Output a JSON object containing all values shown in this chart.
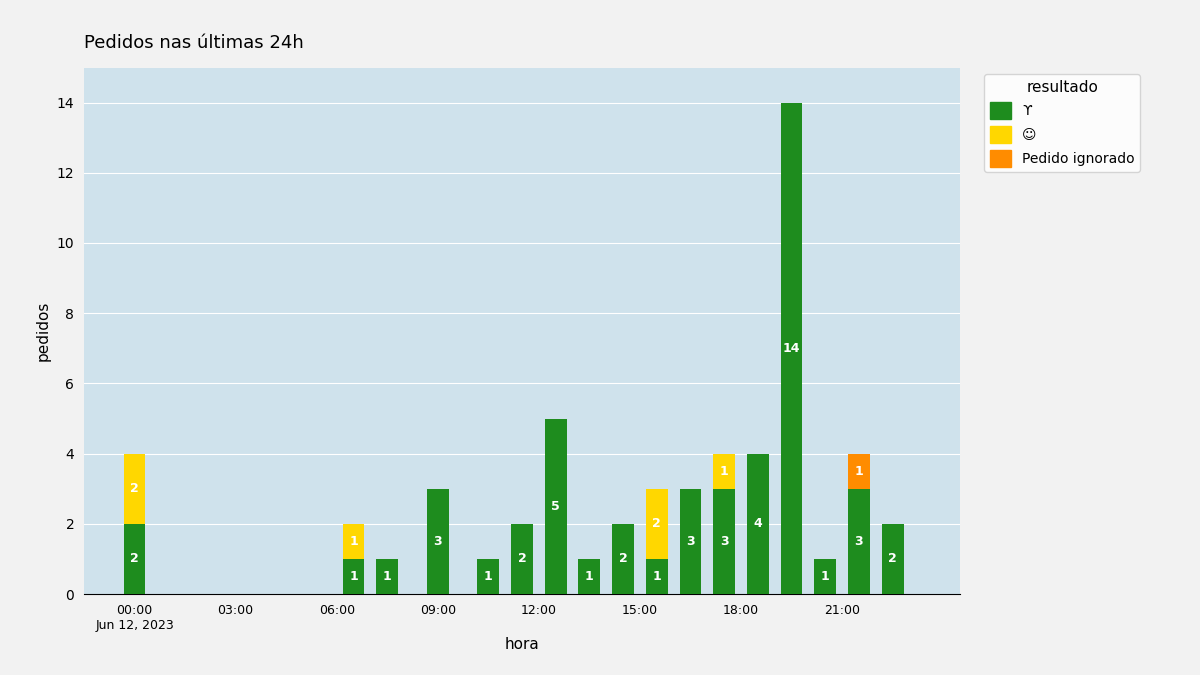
{
  "title": "Pedidos nas últimas 24h",
  "xlabel": "hora",
  "ylabel": "pedidos",
  "background_color": "#f2f2f2",
  "plot_bg_color": "#cfe2ec",
  "legend_title": "resultado",
  "legend_labels": [
    "ϒ",
    "☺",
    "Pedido ignorado"
  ],
  "legend_colors": [
    "#1e8c1e",
    "#ffd700",
    "#ff8c00"
  ],
  "colors": {
    "green": "#1e8c1e",
    "yellow": "#ffd700",
    "orange": "#ff8c00"
  },
  "hour_labels": [
    "00:00\nJun 12, 2023",
    "03:00",
    "06:00",
    "09:00",
    "12:00",
    "15:00",
    "18:00",
    "21:00"
  ],
  "hour_positions": [
    0,
    3,
    6,
    9,
    12,
    15,
    18,
    21
  ],
  "bars": [
    {
      "hour": 0,
      "green": 2,
      "yellow": 2,
      "orange": 0
    },
    {
      "hour": 6.5,
      "green": 1,
      "yellow": 1,
      "orange": 0
    },
    {
      "hour": 7.5,
      "green": 1,
      "yellow": 0,
      "orange": 0
    },
    {
      "hour": 9.0,
      "green": 3,
      "yellow": 0,
      "orange": 0
    },
    {
      "hour": 10.5,
      "green": 1,
      "yellow": 0,
      "orange": 0
    },
    {
      "hour": 11.5,
      "green": 2,
      "yellow": 0,
      "orange": 0
    },
    {
      "hour": 12.5,
      "green": 5,
      "yellow": 0,
      "orange": 0
    },
    {
      "hour": 13.5,
      "green": 1,
      "yellow": 0,
      "orange": 0
    },
    {
      "hour": 14.5,
      "green": 2,
      "yellow": 0,
      "orange": 0
    },
    {
      "hour": 15.5,
      "green": 1,
      "yellow": 2,
      "orange": 0
    },
    {
      "hour": 16.5,
      "green": 3,
      "yellow": 0,
      "orange": 0
    },
    {
      "hour": 17.5,
      "green": 3,
      "yellow": 1,
      "orange": 0
    },
    {
      "hour": 18.5,
      "green": 4,
      "yellow": 0,
      "orange": 0
    },
    {
      "hour": 19.5,
      "green": 14,
      "yellow": 0,
      "orange": 0
    },
    {
      "hour": 20.5,
      "green": 1,
      "yellow": 0,
      "orange": 0
    },
    {
      "hour": 21.5,
      "green": 3,
      "yellow": 0,
      "orange": 1
    },
    {
      "hour": 22.5,
      "green": 2,
      "yellow": 0,
      "orange": 0
    }
  ],
  "ylim": [
    0,
    15
  ],
  "xlim": [
    -1.5,
    24.5
  ],
  "bar_width": 0.65,
  "yticks": [
    0,
    2,
    4,
    6,
    8,
    10,
    12,
    14
  ]
}
